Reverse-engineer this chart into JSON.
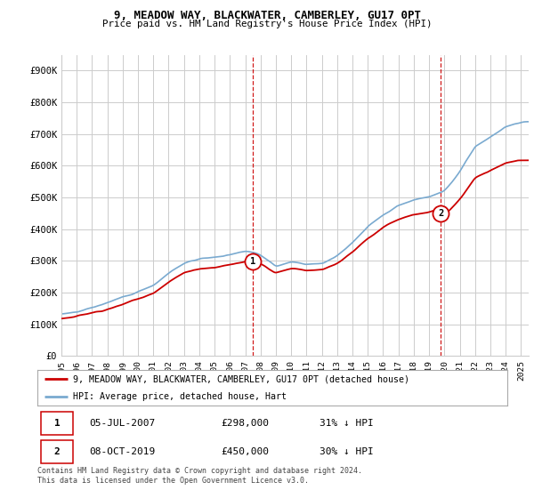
{
  "title": "9, MEADOW WAY, BLACKWATER, CAMBERLEY, GU17 0PT",
  "subtitle": "Price paid vs. HM Land Registry's House Price Index (HPI)",
  "legend_property": "9, MEADOW WAY, BLACKWATER, CAMBERLEY, GU17 0PT (detached house)",
  "legend_hpi": "HPI: Average price, detached house, Hart",
  "footnote": "Contains HM Land Registry data © Crown copyright and database right 2024.\nThis data is licensed under the Open Government Licence v3.0.",
  "transaction1_date": "05-JUL-2007",
  "transaction1_price": "£298,000",
  "transaction1_hpi": "31% ↓ HPI",
  "transaction1_x": 2007.5,
  "transaction1_y": 298000,
  "transaction2_date": "08-OCT-2019",
  "transaction2_price": "£450,000",
  "transaction2_hpi": "30% ↓ HPI",
  "transaction2_x": 2019.75,
  "transaction2_y": 450000,
  "ylim": [
    0,
    950000
  ],
  "xlim": [
    1995,
    2025.5
  ],
  "yticks": [
    0,
    100000,
    200000,
    300000,
    400000,
    500000,
    600000,
    700000,
    800000,
    900000
  ],
  "ytick_labels": [
    "£0",
    "£100K",
    "£200K",
    "£300K",
    "£400K",
    "£500K",
    "£600K",
    "£700K",
    "£800K",
    "£900K"
  ],
  "property_color": "#cc0000",
  "hpi_color": "#7aaad0",
  "vline_color": "#cc0000",
  "grid_color": "#cccccc",
  "background_color": "#ffffff"
}
